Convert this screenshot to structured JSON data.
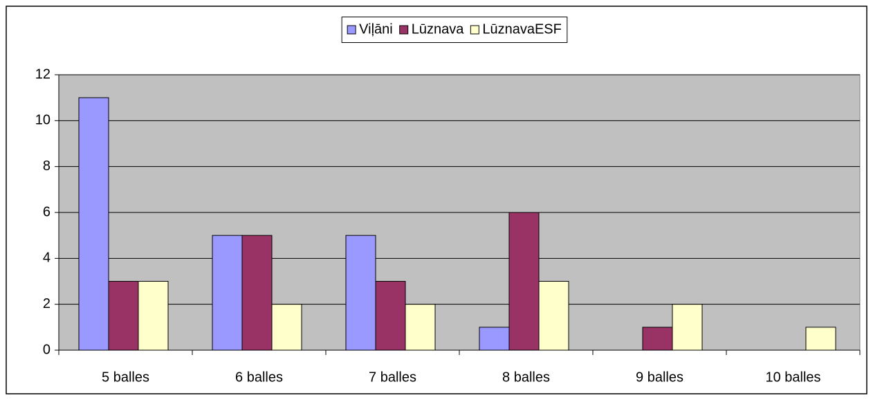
{
  "chart_data": {
    "type": "bar",
    "categories": [
      "5 balles",
      "6 balles",
      "7 balles",
      "8 balles",
      "9 balles",
      "10 balles"
    ],
    "series": [
      {
        "name": "Viļāni",
        "color": "#9999ff",
        "values": [
          11,
          5,
          5,
          1,
          0,
          0
        ]
      },
      {
        "name": "Lūznava",
        "color": "#993366",
        "values": [
          3,
          5,
          3,
          6,
          1,
          0
        ]
      },
      {
        "name": "LūznavaESF",
        "color": "#ffffcc",
        "values": [
          3,
          2,
          2,
          3,
          2,
          1
        ]
      }
    ],
    "ylim": [
      0,
      12
    ],
    "yticks": [
      0,
      2,
      4,
      6,
      8,
      10,
      12
    ],
    "grid": true,
    "legend": "top",
    "plot_background": "#c0c0c0"
  }
}
